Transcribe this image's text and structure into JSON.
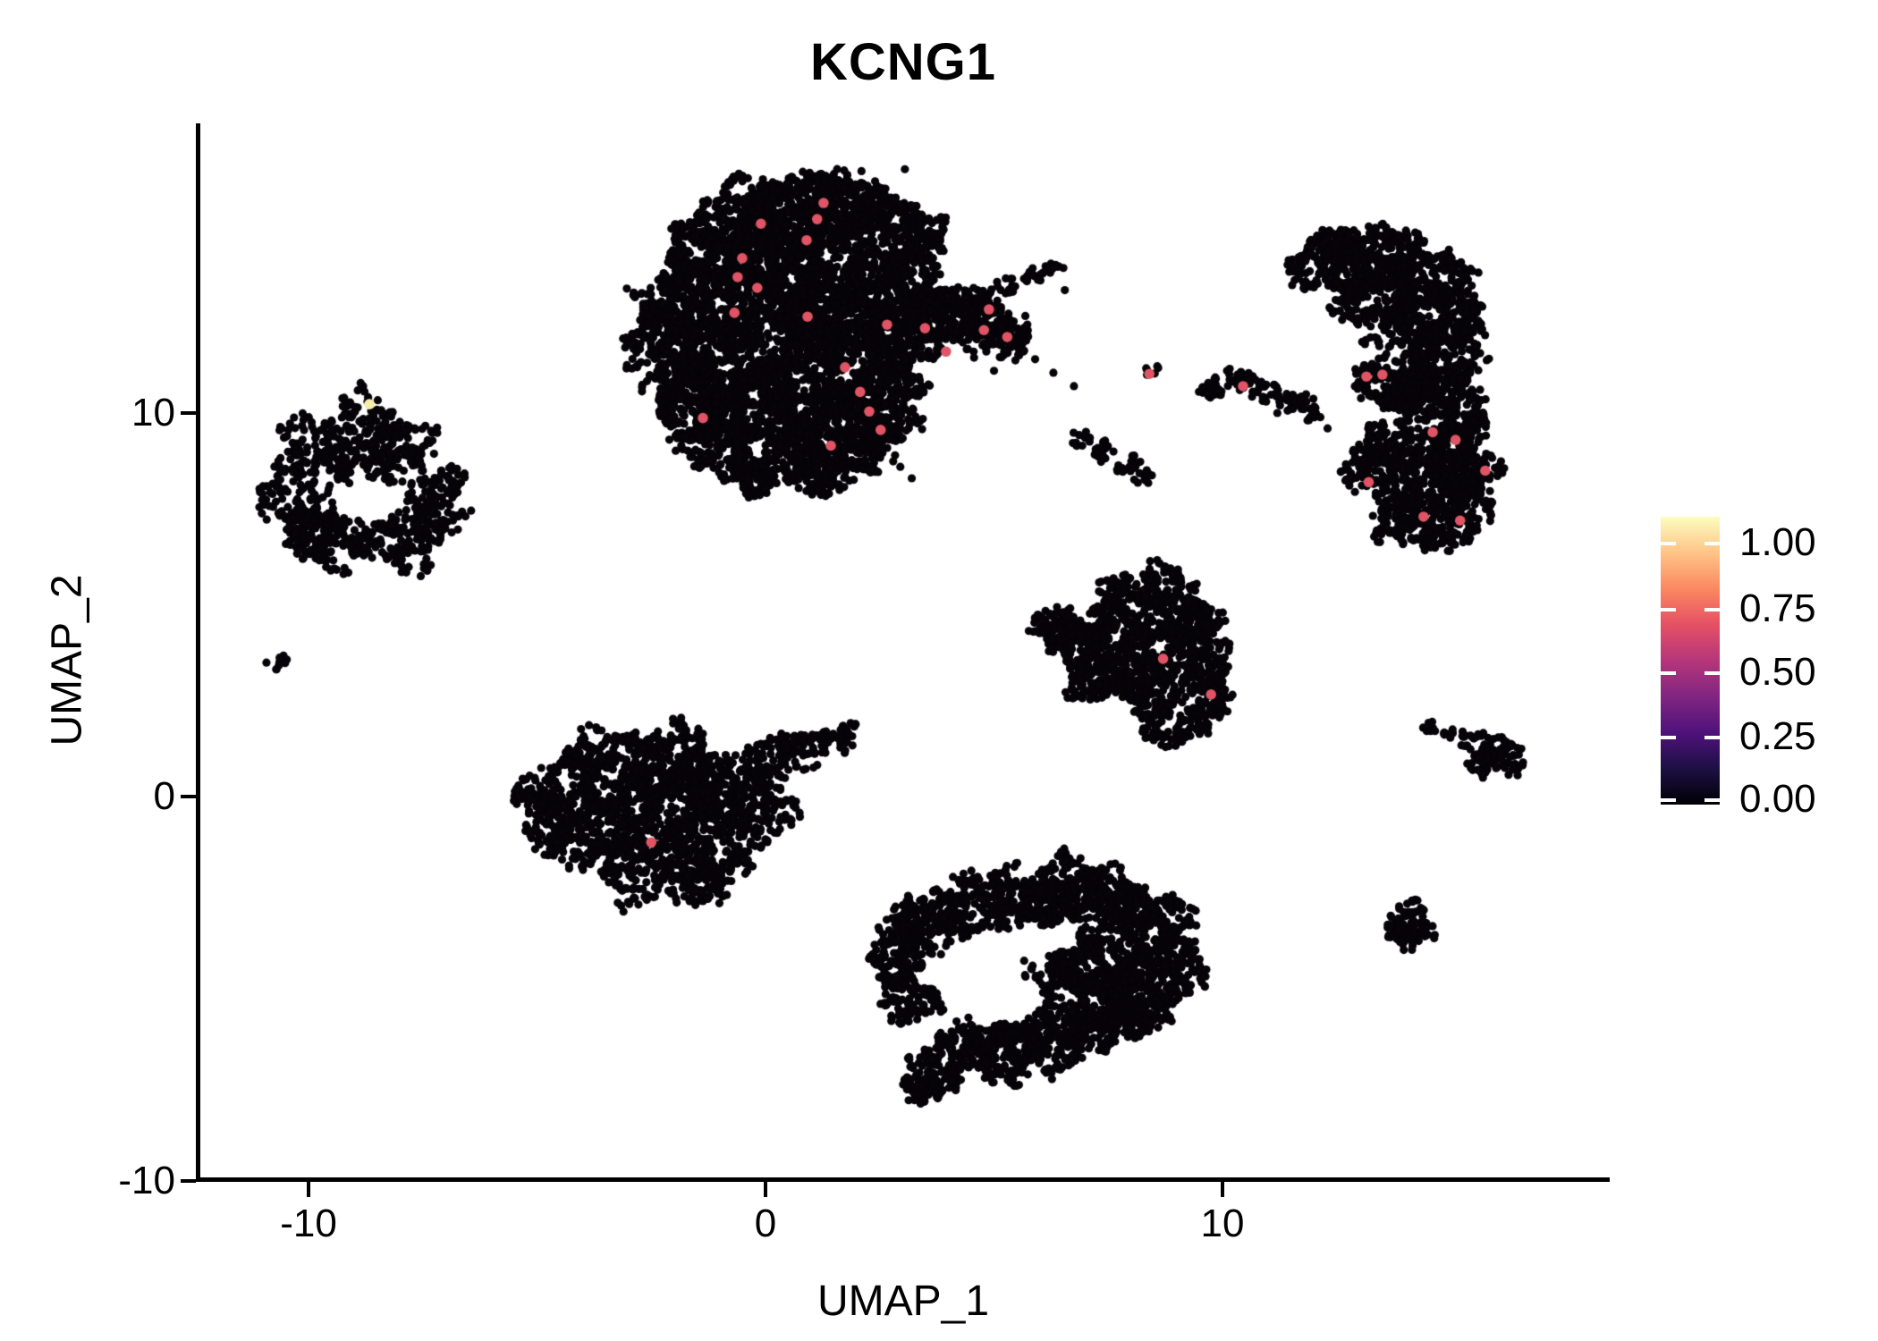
{
  "chart_data": {
    "type": "scatter",
    "title": "KCNG1",
    "xlabel": "UMAP_1",
    "ylabel": "UMAP_2",
    "xlim": [
      -12.4,
      18.4
    ],
    "ylim": [
      -9.95,
      17.5
    ],
    "xticks": [
      -10,
      0,
      10
    ],
    "yticks": [
      -10,
      0,
      10
    ],
    "xtick_labels": [
      "-10",
      "0",
      "10"
    ],
    "ytick_labels": [
      "-10",
      "0",
      "10"
    ],
    "grid": false,
    "legend": {
      "position": "right",
      "labels": [
        "1.00",
        "0.75",
        "0.50",
        "0.25",
        "0.00"
      ],
      "values": [
        1.0,
        0.75,
        0.5,
        0.25,
        0.0
      ],
      "colormap": "magma",
      "stops": [
        "#000004",
        "#1c1044",
        "#4f127b",
        "#812581",
        "#b5367a",
        "#e55064",
        "#fb8861",
        "#fec488",
        "#fcfdbf"
      ]
    },
    "colors": {
      "point_zero": "#060309",
      "point_high": "#e05465",
      "point_max": "#f5eeab",
      "axis": "#000000",
      "background": "#ffffff"
    },
    "point_radius_px": 4.6,
    "highlight_radius_px": 5.8,
    "seed": 42,
    "clusters": [
      {
        "name": "top-center-large",
        "n": 6500,
        "blobs": [
          [
            -0.6,
            15.0,
            1.0
          ],
          [
            0.6,
            15.3,
            1.0
          ],
          [
            1.7,
            15.4,
            0.9
          ],
          [
            2.6,
            15.0,
            0.8
          ],
          [
            3.2,
            14.4,
            0.8
          ],
          [
            -1.3,
            13.9,
            0.95
          ],
          [
            0.3,
            13.9,
            1.1
          ],
          [
            1.8,
            13.6,
            1.0
          ],
          [
            3.1,
            13.2,
            0.85
          ],
          [
            3.7,
            12.7,
            0.7
          ],
          [
            -1.9,
            12.9,
            0.9
          ],
          [
            -0.3,
            12.7,
            1.1
          ],
          [
            1.5,
            12.4,
            1.1
          ],
          [
            2.9,
            11.9,
            0.9
          ],
          [
            -2.3,
            11.8,
            0.8
          ],
          [
            -0.8,
            11.4,
            1.1
          ],
          [
            1.0,
            11.2,
            1.1
          ],
          [
            2.5,
            10.8,
            0.85
          ],
          [
            -1.7,
            10.4,
            0.9
          ],
          [
            0.0,
            10.1,
            1.05
          ],
          [
            1.6,
            9.9,
            0.9
          ],
          [
            2.8,
            9.7,
            0.6
          ],
          [
            -1.0,
            9.2,
            0.85
          ],
          [
            0.7,
            8.9,
            0.8
          ],
          [
            2.0,
            8.9,
            0.65
          ],
          [
            -0.2,
            8.4,
            0.55
          ],
          [
            1.2,
            8.25,
            0.5
          ],
          [
            4.6,
            12.3,
            0.7
          ],
          [
            5.3,
            12.0,
            0.55
          ],
          [
            4.7,
            13.05,
            0.28
          ],
          [
            5.3,
            13.3,
            0.26
          ],
          [
            5.9,
            13.55,
            0.24
          ],
          [
            6.35,
            13.75,
            0.2
          ]
        ],
        "holes": [
          [
            2.7,
            14.5,
            0.35,
            0.35
          ],
          [
            3.3,
            13.7,
            0.3,
            0.35
          ],
          [
            0.9,
            10.6,
            0.25,
            0.3
          ],
          [
            -0.3,
            11.6,
            0.22,
            0.3
          ],
          [
            1.9,
            11.2,
            0.22,
            0.3
          ]
        ]
      },
      {
        "name": "left-mid",
        "n": 950,
        "blobs": [
          [
            -9.9,
            9.2,
            0.75
          ],
          [
            -8.8,
            9.9,
            0.7
          ],
          [
            -8.0,
            9.0,
            0.8
          ],
          [
            -10.3,
            7.9,
            0.8
          ],
          [
            -9.4,
            6.8,
            0.85
          ],
          [
            -8.0,
            6.6,
            0.8
          ],
          [
            -7.3,
            7.3,
            0.7
          ],
          [
            -7.1,
            8.1,
            0.55
          ],
          [
            -9.0,
            8.7,
            0.7
          ],
          [
            -10.0,
            6.9,
            0.6
          ]
        ],
        "holes": [
          [
            -8.75,
            7.85,
            0.6,
            0.06
          ]
        ]
      },
      {
        "name": "tiny-left-speck",
        "n": 9,
        "blobs": [
          [
            -10.78,
            3.42,
            0.17
          ],
          [
            -10.58,
            3.6,
            0.13
          ]
        ],
        "holes": []
      },
      {
        "name": "bottom-left-center",
        "n": 2100,
        "blobs": [
          [
            -4.4,
            0.3,
            0.85
          ],
          [
            -3.3,
            0.85,
            1.0
          ],
          [
            -2.0,
            0.95,
            1.0
          ],
          [
            -3.8,
            -0.75,
            1.05
          ],
          [
            -2.3,
            -0.5,
            1.15
          ],
          [
            -0.95,
            0.2,
            0.9
          ],
          [
            -1.0,
            -1.2,
            1.0
          ],
          [
            -2.8,
            -1.85,
            0.9
          ],
          [
            -1.5,
            -2.2,
            0.7
          ],
          [
            -4.7,
            -0.9,
            0.6
          ],
          [
            0.0,
            0.9,
            0.65
          ],
          [
            0.85,
            1.25,
            0.5
          ],
          [
            1.55,
            1.55,
            0.38
          ],
          [
            2.0,
            1.75,
            0.28
          ],
          [
            0.3,
            -0.4,
            0.5
          ],
          [
            -5.0,
            0.0,
            0.5
          ]
        ],
        "holes": [
          [
            -4.35,
            0.4,
            0.3,
            0.35
          ],
          [
            -3.6,
            0.1,
            0.25,
            0.35
          ]
        ]
      },
      {
        "name": "center-triangle",
        "n": 1500,
        "blobs": [
          [
            8.7,
            5.5,
            0.6
          ],
          [
            7.9,
            4.9,
            0.8
          ],
          [
            9.2,
            4.6,
            0.7
          ],
          [
            6.8,
            4.1,
            0.7
          ],
          [
            8.0,
            3.7,
            0.9
          ],
          [
            9.5,
            3.4,
            0.7
          ],
          [
            7.3,
            3.1,
            0.65
          ],
          [
            8.5,
            2.7,
            0.7
          ],
          [
            9.7,
            2.5,
            0.5
          ],
          [
            6.3,
            4.5,
            0.45
          ],
          [
            9.3,
            1.9,
            0.38
          ],
          [
            8.9,
            1.55,
            0.28
          ],
          [
            8.5,
            1.7,
            0.24
          ]
        ],
        "holes": [
          [
            7.8,
            4.3,
            0.25,
            0.3
          ],
          [
            8.6,
            3.9,
            0.2,
            0.3
          ]
        ]
      },
      {
        "name": "mid-speck",
        "n": 6,
        "blobs": [
          [
            8.42,
            11.05,
            0.16
          ],
          [
            8.62,
            11.15,
            0.12
          ]
        ],
        "holes": []
      },
      {
        "name": "mid-arc",
        "n": 110,
        "blobs": [
          [
            9.8,
            10.65,
            0.28
          ],
          [
            10.35,
            10.9,
            0.33
          ],
          [
            10.95,
            10.6,
            0.3
          ],
          [
            11.45,
            10.3,
            0.28
          ],
          [
            11.95,
            9.92,
            0.26
          ]
        ],
        "holes": []
      },
      {
        "name": "mid-chain",
        "n": 60,
        "blobs": [
          [
            6.9,
            9.3,
            0.24
          ],
          [
            7.4,
            9.0,
            0.28
          ],
          [
            7.95,
            8.6,
            0.28
          ],
          [
            8.25,
            8.3,
            0.22
          ]
        ],
        "holes": []
      },
      {
        "name": "right-crescent",
        "n": 2700,
        "blobs": [
          [
            12.3,
            13.9,
            0.8
          ],
          [
            13.5,
            14.15,
            0.85
          ],
          [
            14.5,
            13.5,
            0.85
          ],
          [
            15.0,
            12.6,
            0.78
          ],
          [
            13.3,
            13.0,
            0.85
          ],
          [
            14.1,
            12.1,
            0.9
          ],
          [
            14.9,
            11.4,
            0.8
          ],
          [
            13.7,
            10.8,
            0.8
          ],
          [
            14.6,
            10.4,
            0.78
          ],
          [
            15.2,
            9.9,
            0.7
          ],
          [
            13.9,
            9.5,
            0.8
          ],
          [
            14.9,
            9.0,
            0.75
          ],
          [
            15.5,
            8.5,
            0.6
          ],
          [
            13.3,
            8.6,
            0.65
          ],
          [
            14.3,
            8.1,
            0.85
          ],
          [
            15.3,
            7.7,
            0.6
          ],
          [
            13.9,
            7.2,
            0.7
          ],
          [
            14.9,
            6.95,
            0.6
          ],
          [
            12.6,
            14.3,
            0.5
          ],
          [
            11.75,
            10.35,
            0.18
          ]
        ],
        "holes": [
          [
            13.9,
            11.4,
            0.3,
            0.25
          ],
          [
            14.5,
            12.6,
            0.28,
            0.25
          ],
          [
            13.2,
            12.2,
            0.25,
            0.25
          ],
          [
            14.3,
            9.8,
            0.22,
            0.3
          ],
          [
            13.6,
            9.9,
            0.2,
            0.3
          ]
        ]
      },
      {
        "name": "right-arrow",
        "n": 140,
        "blobs": [
          [
            14.55,
            1.82,
            0.14
          ],
          [
            14.95,
            1.68,
            0.18
          ],
          [
            15.35,
            1.5,
            0.24
          ],
          [
            15.85,
            1.28,
            0.4
          ],
          [
            16.25,
            1.0,
            0.42
          ],
          [
            15.7,
            0.8,
            0.3
          ]
        ],
        "holes": []
      },
      {
        "name": "bottom-right-large",
        "n": 2800,
        "blobs": [
          [
            3.6,
            -3.2,
            0.8
          ],
          [
            4.6,
            -2.8,
            0.8
          ],
          [
            5.6,
            -2.6,
            0.8
          ],
          [
            6.6,
            -2.5,
            0.9
          ],
          [
            7.6,
            -2.8,
            0.9
          ],
          [
            8.5,
            -3.3,
            0.8
          ],
          [
            8.9,
            -4.2,
            0.8
          ],
          [
            8.3,
            -5.2,
            0.9
          ],
          [
            7.4,
            -5.7,
            0.9
          ],
          [
            6.3,
            -6.3,
            0.85
          ],
          [
            5.2,
            -6.6,
            0.8
          ],
          [
            4.2,
            -6.6,
            0.7
          ],
          [
            3.6,
            -7.3,
            0.6
          ],
          [
            3.4,
            -7.6,
            0.4
          ],
          [
            3.1,
            -5.3,
            0.65
          ],
          [
            2.9,
            -4.3,
            0.6
          ],
          [
            7.4,
            -4.4,
            0.95
          ],
          [
            6.4,
            -4.8,
            0.85
          ],
          [
            3.05,
            -3.6,
            0.5
          ]
        ],
        "holes": [
          [
            4.7,
            -4.6,
            0.6,
            0.12
          ],
          [
            5.6,
            -5.2,
            0.55,
            0.12
          ],
          [
            4.3,
            -5.4,
            0.45,
            0.12
          ],
          [
            5.4,
            -4.0,
            0.5,
            0.12
          ],
          [
            4.0,
            -4.5,
            0.4,
            0.12
          ]
        ]
      },
      {
        "name": "small-round-bottom-right",
        "n": 110,
        "blobs": [
          [
            14.1,
            -3.15,
            0.42
          ],
          [
            13.85,
            -3.55,
            0.3
          ],
          [
            14.35,
            -3.5,
            0.3
          ],
          [
            14.1,
            -3.8,
            0.22
          ]
        ],
        "holes": []
      }
    ],
    "singletons": [
      [
        5.9,
        11.4
      ],
      [
        6.3,
        11.05
      ],
      [
        6.75,
        10.7
      ],
      [
        6.55,
        13.2
      ],
      [
        3.05,
        16.35
      ],
      [
        2.1,
        16.3
      ],
      [
        5.0,
        11.1
      ],
      [
        2.95,
        8.6
      ],
      [
        3.2,
        8.3
      ],
      [
        11.2,
        10.0
      ],
      [
        12.3,
        9.6
      ]
    ],
    "highlight_points": [
      [
        1.27,
        15.47
      ],
      [
        1.13,
        15.05
      ],
      [
        -0.1,
        14.93
      ],
      [
        0.9,
        14.5
      ],
      [
        -0.51,
        14.03
      ],
      [
        -0.61,
        13.54
      ],
      [
        -0.18,
        13.26
      ],
      [
        -0.68,
        12.61
      ],
      [
        0.92,
        12.51
      ],
      [
        2.66,
        12.3
      ],
      [
        3.49,
        12.21
      ],
      [
        4.89,
        12.7
      ],
      [
        4.78,
        12.16
      ],
      [
        5.29,
        11.98
      ],
      [
        3.95,
        11.6
      ],
      [
        1.74,
        11.19
      ],
      [
        2.07,
        10.55
      ],
      [
        2.27,
        10.04
      ],
      [
        2.52,
        9.56
      ],
      [
        -1.37,
        9.87
      ],
      [
        1.43,
        9.15
      ],
      [
        -2.5,
        -1.18
      ],
      [
        8.7,
        3.6
      ],
      [
        9.75,
        2.67
      ],
      [
        8.4,
        11.02
      ],
      [
        10.45,
        10.7
      ],
      [
        13.15,
        10.95
      ],
      [
        13.5,
        11.0
      ],
      [
        14.6,
        9.5
      ],
      [
        15.1,
        9.3
      ],
      [
        15.75,
        8.5
      ],
      [
        13.2,
        8.2
      ],
      [
        14.4,
        7.3
      ],
      [
        15.2,
        7.2
      ]
    ],
    "max_points": [
      [
        -8.67,
        10.23
      ]
    ]
  }
}
